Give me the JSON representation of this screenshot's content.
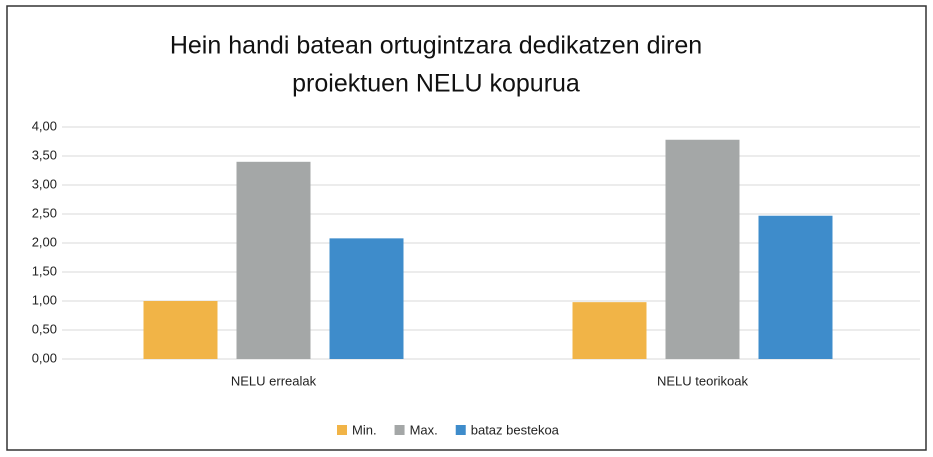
{
  "chart_data": {
    "type": "bar",
    "title": [
      "Hein handi batean ortugintzara dedikatzen diren",
      "proiektuen NELU kopurua"
    ],
    "categories": [
      "NELU errealak",
      "NELU teorikoak"
    ],
    "series": [
      {
        "name": "Min.",
        "color": "#f1b447",
        "values": [
          1.0,
          0.98
        ]
      },
      {
        "name": "Max.",
        "color": "#a4a7a7",
        "values": [
          3.4,
          3.78
        ]
      },
      {
        "name": "bataz bestekoa",
        "color": "#3e8ccb",
        "values": [
          2.08,
          2.47
        ]
      }
    ],
    "ylim": [
      0,
      4
    ],
    "yticks": [
      {
        "value": 0,
        "label": "0,00"
      },
      {
        "value": 0.5,
        "label": "0,50"
      },
      {
        "value": 1,
        "label": "1,00"
      },
      {
        "value": 1.5,
        "label": "1,50"
      },
      {
        "value": 2,
        "label": "2,00"
      },
      {
        "value": 2.5,
        "label": "2,50"
      },
      {
        "value": 3,
        "label": "3,00"
      },
      {
        "value": 3.5,
        "label": "3,50"
      },
      {
        "value": 4,
        "label": "4,00"
      }
    ],
    "grid": true,
    "legend": "bottom"
  }
}
